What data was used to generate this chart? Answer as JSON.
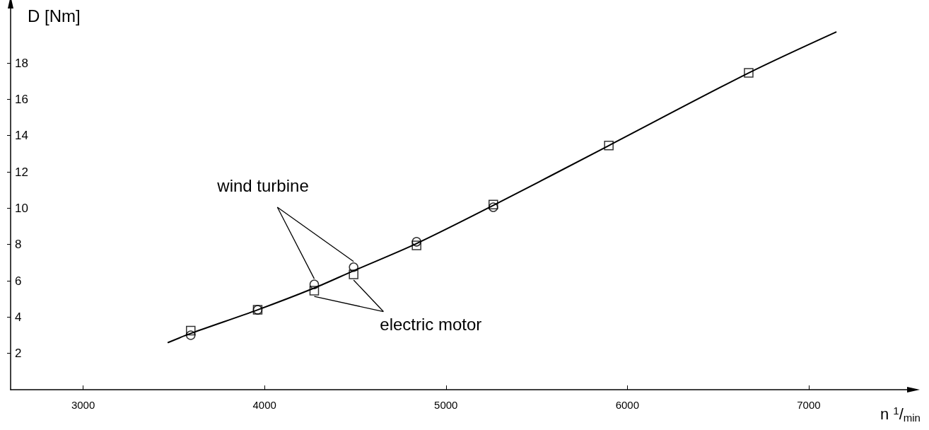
{
  "chart_data": {
    "type": "scatter",
    "xlabel": "n $^{1}$/$_{min}$",
    "ylabel": "D [Nm]",
    "xlim": [
      2600,
      7550
    ],
    "ylim": [
      0,
      21
    ],
    "xticks": [
      3000,
      4000,
      5000,
      6000,
      7000
    ],
    "yticks": [
      2,
      4,
      6,
      8,
      10,
      12,
      14,
      16,
      18
    ],
    "grid": false,
    "annotations": [
      {
        "text": "wind turbine",
        "x": 4274,
        "y": 5.8
      },
      {
        "text": "electric motor",
        "x": 4274,
        "y": 5.45
      }
    ],
    "series": [
      {
        "marker": "circle",
        "color": "#000000",
        "x": [
          3593,
          3962,
          4274,
          4491,
          4838,
          5261
        ],
        "values": [
          3.0,
          4.4,
          5.8,
          6.75,
          8.15,
          10.05
        ]
      },
      {
        "marker": "square",
        "color": "#000000",
        "x": [
          3593,
          3962,
          4274,
          4491,
          4838,
          5261,
          5898,
          6669
        ],
        "values": [
          3.25,
          4.4,
          5.45,
          6.35,
          7.95,
          10.2,
          13.45,
          17.45
        ]
      },
      {
        "type": "line",
        "marker": "none",
        "line_style": "solid",
        "color": "#000000",
        "x": [
          3469,
          3593,
          3962,
          4274,
          4491,
          4838,
          5261,
          5898,
          6669,
          7150
        ],
        "values": [
          2.6,
          3.1,
          4.4,
          5.6,
          6.55,
          8.05,
          10.15,
          13.45,
          17.45,
          19.7
        ]
      }
    ]
  }
}
